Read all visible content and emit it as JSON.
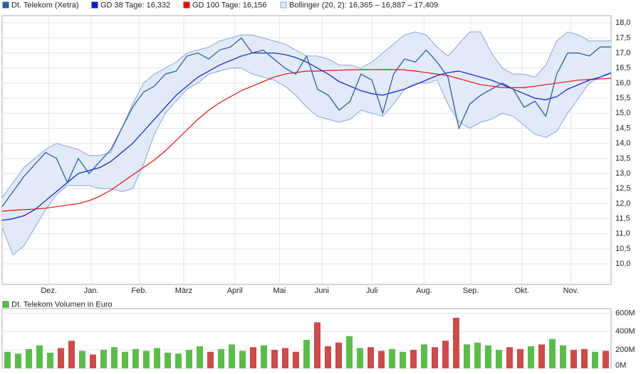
{
  "chart_data": [
    {
      "type": "line",
      "xlim": [
        0,
        56
      ],
      "xticks": [
        {
          "value": 4.3,
          "label": "Dez."
        },
        {
          "value": 8.2,
          "label": "Jan."
        },
        {
          "value": 12.6,
          "label": "Feb."
        },
        {
          "value": 16.7,
          "label": "März"
        },
        {
          "value": 21.4,
          "label": "April"
        },
        {
          "value": 25.5,
          "label": "Mai"
        },
        {
          "value": 29.4,
          "label": "Juni"
        },
        {
          "value": 34.0,
          "label": "Juli"
        },
        {
          "value": 38.8,
          "label": "Aug."
        },
        {
          "value": 43.1,
          "label": "Sep."
        },
        {
          "value": 47.8,
          "label": "Okt."
        },
        {
          "value": 52.3,
          "label": "Nov."
        }
      ],
      "ylim": [
        9.32,
        18.24
      ],
      "yticks": [
        {
          "value": 10,
          "label": "10,0"
        },
        {
          "value": 10.5,
          "label": "10,5"
        },
        {
          "value": 11,
          "label": "11,0"
        },
        {
          "value": 11.5,
          "label": "11,5"
        },
        {
          "value": 12,
          "label": "12,0"
        },
        {
          "value": 12.5,
          "label": "12,5"
        },
        {
          "value": 13,
          "label": "13,0"
        },
        {
          "value": 13.5,
          "label": "13,5"
        },
        {
          "value": 14,
          "label": "14,0"
        },
        {
          "value": 14.5,
          "label": "14,5"
        },
        {
          "value": 15,
          "label": "15,0"
        },
        {
          "value": 15.5,
          "label": "15,5"
        },
        {
          "value": 16,
          "label": "16,0"
        },
        {
          "value": 16.5,
          "label": "16,5"
        },
        {
          "value": 17,
          "label": "17,0"
        },
        {
          "value": 17.5,
          "label": "17,5"
        },
        {
          "value": 18,
          "label": "18,0"
        }
      ],
      "grid": true,
      "series": [
        {
          "name": "Dt. Telekom (Xetra)",
          "color": "#2f5d9e",
          "values": [
            11.9,
            12.4,
            12.9,
            13.3,
            13.7,
            13.5,
            12.7,
            13.5,
            13.0,
            13.4,
            13.8,
            14.5,
            15.2,
            15.7,
            15.9,
            16.3,
            16.4,
            16.9,
            17.0,
            16.8,
            17.1,
            17.2,
            17.5,
            17.0,
            17.1,
            16.8,
            16.5,
            16.3,
            16.9,
            15.8,
            15.6,
            15.1,
            15.4,
            16.3,
            16.1,
            15.0,
            16.3,
            16.8,
            16.7,
            17.1,
            16.7,
            16.2,
            14.5,
            15.3,
            15.6,
            15.8,
            16.0,
            15.8,
            15.2,
            15.4,
            14.9,
            16.3,
            17.0,
            17.0,
            16.9,
            17.2,
            17.2
          ]
        },
        {
          "name": "GD 38 Tage: 16,332",
          "color": "#0a1ccc",
          "values": [
            11.45,
            11.5,
            11.6,
            11.8,
            12.1,
            12.4,
            12.7,
            13.0,
            13.1,
            13.2,
            13.4,
            13.7,
            14.0,
            14.4,
            14.8,
            15.2,
            15.6,
            15.9,
            16.2,
            16.4,
            16.6,
            16.75,
            16.9,
            17.0,
            17.0,
            17.0,
            16.95,
            16.85,
            16.7,
            16.5,
            16.3,
            16.05,
            15.9,
            15.75,
            15.65,
            15.6,
            15.7,
            15.8,
            15.95,
            16.1,
            16.25,
            16.35,
            16.4,
            16.3,
            16.2,
            16.1,
            15.95,
            15.8,
            15.65,
            15.5,
            15.45,
            15.55,
            15.8,
            15.95,
            16.1,
            16.2,
            16.33
          ]
        },
        {
          "name": "GD 100 Tage: 16,156",
          "color": "#e01010",
          "values": [
            11.75,
            11.78,
            11.8,
            11.82,
            11.85,
            11.9,
            11.95,
            12.0,
            12.1,
            12.25,
            12.45,
            12.7,
            12.95,
            13.2,
            13.45,
            13.75,
            14.1,
            14.45,
            14.8,
            15.1,
            15.35,
            15.55,
            15.75,
            15.9,
            16.05,
            16.2,
            16.3,
            16.35,
            16.4,
            16.4,
            16.42,
            16.43,
            16.44,
            16.45,
            16.45,
            16.45,
            16.45,
            16.44,
            16.4,
            16.35,
            16.3,
            16.25,
            16.15,
            16.05,
            15.95,
            15.9,
            15.85,
            15.85,
            15.85,
            15.9,
            15.95,
            16.0,
            16.05,
            16.1,
            16.12,
            16.14,
            16.16
          ]
        },
        {
          "name": "Bollinger (20, 2): 16,365 – 16,887 – 17,409",
          "color": "#86a6d4",
          "fill": "#e2eaf7",
          "upper": [
            12.2,
            12.7,
            13.2,
            13.5,
            13.8,
            14.0,
            13.9,
            13.8,
            13.6,
            13.6,
            13.7,
            14.5,
            15.3,
            16.0,
            16.3,
            16.5,
            16.7,
            17.0,
            17.1,
            17.2,
            17.4,
            17.5,
            17.6,
            17.6,
            17.5,
            17.4,
            17.3,
            17.1,
            16.9,
            16.9,
            16.8,
            16.6,
            16.6,
            16.5,
            16.7,
            17.0,
            17.3,
            17.6,
            17.7,
            17.6,
            17.2,
            16.9,
            17.3,
            17.7,
            17.7,
            17.0,
            16.5,
            16.3,
            16.3,
            16.2,
            16.6,
            17.4,
            17.7,
            17.6,
            17.4,
            17.4,
            17.41
          ],
          "lower": [
            11.2,
            10.3,
            10.6,
            11.2,
            11.8,
            12.3,
            12.6,
            12.6,
            12.6,
            12.5,
            12.5,
            12.4,
            12.5,
            13.3,
            14.3,
            15.0,
            15.4,
            15.8,
            16.0,
            16.3,
            16.4,
            16.5,
            16.5,
            16.3,
            16.2,
            16.1,
            15.9,
            15.6,
            15.2,
            14.9,
            14.8,
            14.7,
            14.8,
            15.1,
            15.0,
            14.9,
            15.3,
            15.8,
            16.0,
            16.0,
            16.1,
            15.3,
            14.7,
            14.5,
            14.7,
            14.8,
            15.0,
            14.9,
            14.6,
            14.3,
            14.2,
            14.4,
            15.0,
            15.5,
            16.0,
            16.2,
            16.37
          ]
        }
      ]
    },
    {
      "type": "bar",
      "title": "Dt. Telekom Volumen in Euro",
      "color": "#5dbb4d",
      "ylim": [
        0,
        650
      ],
      "yticks": [
        {
          "value": 0,
          "label": "0M"
        },
        {
          "value": 200,
          "label": "200M"
        },
        {
          "value": 400,
          "label": "400M"
        },
        {
          "value": 600,
          "label": "600M"
        }
      ],
      "grid": true,
      "values": [
        180,
        160,
        210,
        250,
        170,
        220,
        300,
        190,
        150,
        200,
        230,
        180,
        210,
        190,
        220,
        170,
        160,
        200,
        240,
        180,
        210,
        260,
        190,
        230,
        250,
        200,
        220,
        180,
        310,
        500,
        240,
        280,
        350,
        220,
        230,
        190,
        210,
        180,
        200,
        260,
        230,
        300,
        550,
        260,
        280,
        250,
        200,
        230,
        210,
        240,
        260,
        320,
        250,
        200,
        210,
        180,
        190
      ],
      "colors": [
        "#5dbb4d",
        "#5dbb4d",
        "#5dbb4d",
        "#5dbb4d",
        "#5dbb4d",
        "#cc4b4b",
        "#cc4b4b",
        "#5dbb4d",
        "#cc4b4b",
        "#5dbb4d",
        "#5dbb4d",
        "#5dbb4d",
        "#5dbb4d",
        "#5dbb4d",
        "#5dbb4d",
        "#5dbb4d",
        "#5dbb4d",
        "#5dbb4d",
        "#5dbb4d",
        "#cc4b4b",
        "#5dbb4d",
        "#5dbb4d",
        "#5dbb4d",
        "#cc4b4b",
        "#5dbb4d",
        "#cc4b4b",
        "#cc4b4b",
        "#cc4b4b",
        "#5dbb4d",
        "#cc4b4b",
        "#cc4b4b",
        "#cc4b4b",
        "#5dbb4d",
        "#5dbb4d",
        "#cc4b4b",
        "#cc4b4b",
        "#5dbb4d",
        "#5dbb4d",
        "#cc4b4b",
        "#5dbb4d",
        "#cc4b4b",
        "#cc4b4b",
        "#cc4b4b",
        "#5dbb4d",
        "#5dbb4d",
        "#5dbb4d",
        "#5dbb4d",
        "#cc4b4b",
        "#cc4b4b",
        "#5dbb4d",
        "#cc4b4b",
        "#5dbb4d",
        "#5dbb4d",
        "#cc4b4b",
        "#cc4b4b",
        "#5dbb4d",
        "#cc4b4b"
      ]
    }
  ]
}
